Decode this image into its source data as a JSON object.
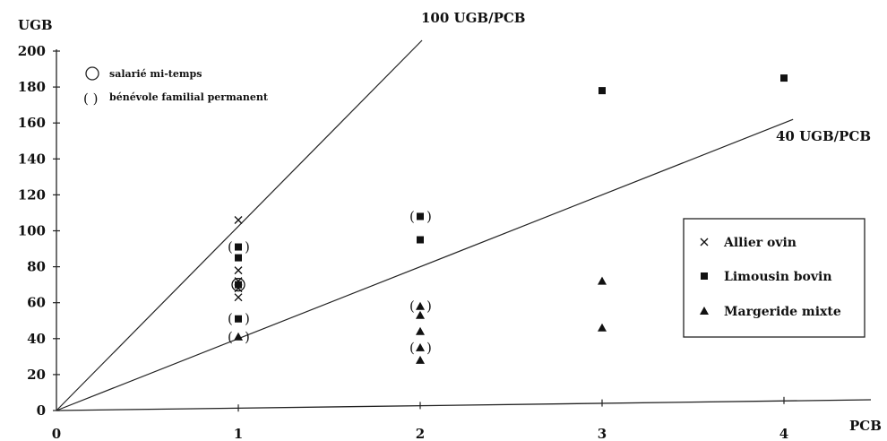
{
  "chart_data": {
    "type": "scatter",
    "title": "",
    "xlabel": "PCB",
    "ylabel": "UGB",
    "xlim": [
      0,
      4.5
    ],
    "ylim": [
      0,
      200
    ],
    "xticks": [
      "0",
      "1",
      "2",
      "3",
      "4"
    ],
    "yticks": [
      "0",
      "20",
      "40",
      "60",
      "80",
      "100",
      "120",
      "140",
      "160",
      "180",
      "200"
    ],
    "grid": false,
    "legend_position": "right",
    "reference_lines": [
      {
        "label": "100 UGB/PCB",
        "slope": 100
      },
      {
        "label": "40 UGB/PCB",
        "slope": 40
      }
    ],
    "notes": [
      {
        "symbol": "circle",
        "text": "salarié mi-temps"
      },
      {
        "symbol": "( )",
        "text": "bénévole familial permanent"
      }
    ],
    "series": [
      {
        "name": "Allier ovin",
        "marker": "x",
        "points": [
          {
            "x": 1,
            "y": 106
          },
          {
            "x": 1,
            "y": 78
          },
          {
            "x": 1,
            "y": 72
          },
          {
            "x": 1,
            "y": 68
          },
          {
            "x": 1,
            "y": 63
          }
        ]
      },
      {
        "name": "Limousin bovin",
        "marker": "square",
        "points": [
          {
            "x": 1,
            "y": 91,
            "paren": true
          },
          {
            "x": 1,
            "y": 85
          },
          {
            "x": 1,
            "y": 70,
            "circle": true
          },
          {
            "x": 1,
            "y": 51,
            "paren": true
          },
          {
            "x": 2,
            "y": 108,
            "paren": true
          },
          {
            "x": 2,
            "y": 95
          },
          {
            "x": 3,
            "y": 178
          },
          {
            "x": 4,
            "y": 185
          }
        ]
      },
      {
        "name": "Margeride mixte",
        "marker": "triangle",
        "points": [
          {
            "x": 1,
            "y": 41,
            "paren": true
          },
          {
            "x": 2,
            "y": 58,
            "paren": true
          },
          {
            "x": 2,
            "y": 53
          },
          {
            "x": 2,
            "y": 44
          },
          {
            "x": 2,
            "y": 35,
            "paren": true
          },
          {
            "x": 2,
            "y": 28
          },
          {
            "x": 3,
            "y": 72
          },
          {
            "x": 3,
            "y": 46
          }
        ]
      }
    ]
  }
}
